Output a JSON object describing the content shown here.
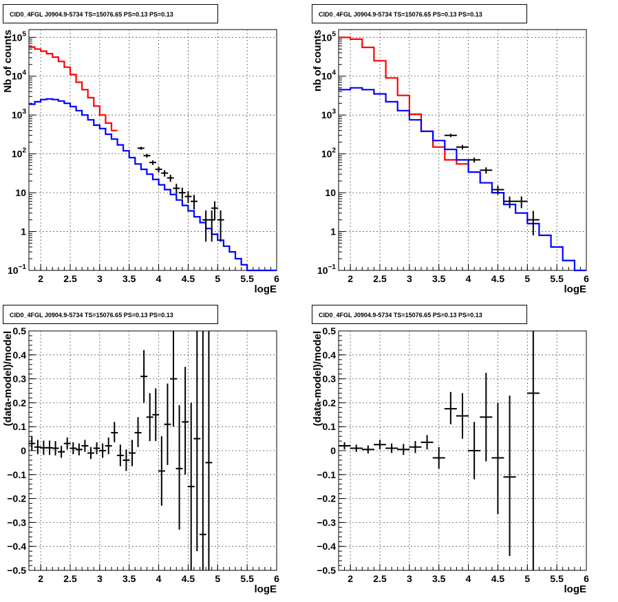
{
  "title": "CID0_4FGL J0904.9-5734 TS=15076.65 PS=0.13 PS=0.13",
  "chart_data": [
    {
      "type": "line",
      "title": "CID0_4FGL J0904.9-5734 TS=15076.65 PS=0.13 PS=0.13",
      "xlabel": "logE",
      "ylabel": "Nb of counts",
      "xlim": [
        1.8,
        6
      ],
      "ylim": [
        0.1,
        200000
      ],
      "log_y": true,
      "x_ticks": [
        "2",
        "2.5",
        "3",
        "3.5",
        "4",
        "4.5",
        "5",
        "5.5",
        "6"
      ],
      "y_ticks": [
        "10^-1",
        "1",
        "10",
        "10^2",
        "10^3",
        "10^4",
        "10^5"
      ],
      "grid": true,
      "series": [
        {
          "color": "#ff0000",
          "edges": [
            1.8,
            1.9,
            2.0,
            2.1,
            2.2,
            2.3,
            2.4,
            2.5,
            2.6,
            2.7,
            2.8,
            2.9,
            3.0,
            3.1,
            3.2,
            3.3
          ],
          "values": [
            56000,
            50000,
            44000,
            38000,
            31000,
            24000,
            17000,
            11000,
            7000,
            4500,
            2800,
            1700,
            1000,
            620,
            400
          ]
        },
        {
          "color": "#0000ff",
          "edges": [
            1.8,
            1.9,
            2.0,
            2.1,
            2.2,
            2.3,
            2.4,
            2.5,
            2.6,
            2.7,
            2.8,
            2.9,
            3.0,
            3.1,
            3.2,
            3.3,
            3.4,
            3.5,
            3.6,
            3.7,
            3.8,
            3.9,
            4.0,
            4.1,
            4.2,
            4.3,
            4.4,
            4.5,
            4.6,
            4.7,
            4.8,
            4.9,
            5.0,
            5.1,
            5.2,
            5.3,
            5.4,
            5.5,
            5.6,
            5.7,
            5.8,
            5.9,
            6.0
          ],
          "values": [
            1900,
            2200,
            2500,
            2600,
            2500,
            2300,
            2000,
            1650,
            1300,
            1000,
            750,
            550,
            450,
            320,
            240,
            170,
            120,
            80,
            55,
            40,
            30,
            22,
            16,
            12,
            9,
            6.5,
            4.7,
            3.4,
            2.4,
            1.7,
            1.2,
            0.85,
            0.6,
            0.42,
            0.3,
            0.2,
            0.14,
            0.1,
            0.08,
            0.07,
            0.06,
            0.06
          ]
        }
      ],
      "points": [
        {
          "x": 3.7,
          "y": 140,
          "lo": 128,
          "hi": 152
        },
        {
          "x": 3.8,
          "y": 90,
          "lo": 80,
          "hi": 100
        },
        {
          "x": 3.9,
          "y": 60,
          "lo": 52,
          "hi": 68
        },
        {
          "x": 4.0,
          "y": 40,
          "lo": 33,
          "hi": 47
        },
        {
          "x": 4.1,
          "y": 32,
          "lo": 26,
          "hi": 38
        },
        {
          "x": 4.2,
          "y": 24,
          "lo": 19,
          "hi": 29
        },
        {
          "x": 4.3,
          "y": 13,
          "lo": 9.5,
          "hi": 17
        },
        {
          "x": 4.4,
          "y": 10,
          "lo": 7,
          "hi": 13.5
        },
        {
          "x": 4.5,
          "y": 8,
          "lo": 5.4,
          "hi": 11
        },
        {
          "x": 4.6,
          "y": 6,
          "lo": 3.7,
          "hi": 8.8
        },
        {
          "x": 4.8,
          "y": 2,
          "lo": 0.55,
          "hi": 3.5
        },
        {
          "x": 4.9,
          "y": 2,
          "lo": 0.55,
          "hi": 3.5
        },
        {
          "x": 4.95,
          "y": 4,
          "lo": 2,
          "hi": 6
        },
        {
          "x": 5.05,
          "y": 2,
          "lo": 0.55,
          "hi": 3.5
        }
      ]
    },
    {
      "type": "line",
      "title": "CID0_4FGL J0904.9-5734 TS=15076.65 PS=0.13 PS=0.13",
      "xlabel": "logE",
      "ylabel": "nb of counts",
      "xlim": [
        1.8,
        6
      ],
      "ylim": [
        0.1,
        200000
      ],
      "log_y": true,
      "x_ticks": [
        "2",
        "2.5",
        "3",
        "3.5",
        "4",
        "4.5",
        "5",
        "5.5",
        "6"
      ],
      "y_ticks": [
        "10^-1",
        "1",
        "10",
        "10^2",
        "10^3",
        "10^4",
        "10^5"
      ],
      "grid": true,
      "series": [
        {
          "color": "#ff0000",
          "edges": [
            1.8,
            2.0,
            2.2,
            2.4,
            2.6,
            2.8,
            3.0,
            3.2,
            3.4,
            3.6,
            3.8,
            4.0
          ],
          "values": [
            100000,
            90000,
            55000,
            25000,
            9000,
            3200,
            1050,
            380,
            150,
            70,
            55
          ]
        },
        {
          "color": "#0000ff",
          "edges": [
            1.8,
            2.0,
            2.2,
            2.4,
            2.6,
            2.8,
            3.0,
            3.2,
            3.4,
            3.6,
            3.8,
            4.0,
            4.2,
            4.4,
            4.6,
            4.8,
            5.0,
            5.2,
            5.4,
            5.6,
            5.8,
            6.0
          ],
          "values": [
            4500,
            5000,
            4500,
            3500,
            2200,
            1300,
            750,
            380,
            220,
            130,
            70,
            34,
            18,
            10,
            5,
            3,
            1.6,
            0.8,
            0.4,
            0.18,
            0.1
          ]
        }
      ],
      "points": [
        {
          "x": 3.7,
          "y": 300,
          "lo": 270,
          "hi": 330
        },
        {
          "x": 3.9,
          "y": 150,
          "lo": 130,
          "hi": 170
        },
        {
          "x": 4.1,
          "y": 70,
          "lo": 60,
          "hi": 80
        },
        {
          "x": 4.3,
          "y": 38,
          "lo": 31,
          "hi": 45
        },
        {
          "x": 4.5,
          "y": 12,
          "lo": 9,
          "hi": 15
        },
        {
          "x": 4.7,
          "y": 6,
          "lo": 4,
          "hi": 8
        },
        {
          "x": 4.9,
          "y": 6,
          "lo": 4,
          "hi": 8
        },
        {
          "x": 5.1,
          "y": 2,
          "lo": 0.8,
          "hi": 3.4
        }
      ]
    },
    {
      "type": "scatter",
      "title": "CID0_4FGL J0904.9-5734 TS=15076.65 PS=0.13 PS=0.13",
      "xlabel": "logE",
      "ylabel": "(data-model)/model",
      "xlim": [
        1.8,
        6
      ],
      "ylim": [
        -0.5,
        0.5
      ],
      "x_ticks": [
        "2",
        "2.5",
        "3",
        "3.5",
        "4",
        "4.5",
        "5",
        "5.5",
        "6"
      ],
      "y_ticks": [
        "-0.5",
        "-0.4",
        "-0.3",
        "-0.2",
        "-0.1",
        "0",
        "0.1",
        "0.2",
        "0.3",
        "0.4",
        "0.5"
      ],
      "grid": true,
      "points": [
        {
          "x": 1.85,
          "y": 0.03,
          "lo": 0.0,
          "hi": 0.06
        },
        {
          "x": 1.95,
          "y": 0.015,
          "lo": -0.015,
          "hi": 0.045
        },
        {
          "x": 2.05,
          "y": 0.012,
          "lo": -0.018,
          "hi": 0.042
        },
        {
          "x": 2.15,
          "y": 0.012,
          "lo": -0.018,
          "hi": 0.042
        },
        {
          "x": 2.25,
          "y": 0.01,
          "lo": -0.02,
          "hi": 0.04
        },
        {
          "x": 2.35,
          "y": -0.005,
          "lo": -0.03,
          "hi": 0.02
        },
        {
          "x": 2.45,
          "y": 0.03,
          "lo": 0.005,
          "hi": 0.055
        },
        {
          "x": 2.55,
          "y": 0.01,
          "lo": -0.015,
          "hi": 0.035
        },
        {
          "x": 2.65,
          "y": 0.005,
          "lo": -0.02,
          "hi": 0.03
        },
        {
          "x": 2.75,
          "y": 0.02,
          "lo": -0.005,
          "hi": 0.045
        },
        {
          "x": 2.85,
          "y": -0.01,
          "lo": -0.035,
          "hi": 0.015
        },
        {
          "x": 2.95,
          "y": 0.01,
          "lo": -0.015,
          "hi": 0.035
        },
        {
          "x": 3.05,
          "y": 0.0,
          "lo": -0.03,
          "hi": 0.03
        },
        {
          "x": 3.15,
          "y": 0.02,
          "lo": -0.015,
          "hi": 0.055
        },
        {
          "x": 3.25,
          "y": 0.075,
          "lo": 0.035,
          "hi": 0.12
        },
        {
          "x": 3.35,
          "y": -0.02,
          "lo": -0.065,
          "hi": 0.025
        },
        {
          "x": 3.45,
          "y": -0.04,
          "lo": -0.085,
          "hi": 0.005
        },
        {
          "x": 3.55,
          "y": -0.01,
          "lo": -0.065,
          "hi": 0.045
        },
        {
          "x": 3.65,
          "y": 0.075,
          "lo": 0.015,
          "hi": 0.14
        },
        {
          "x": 3.75,
          "y": 0.31,
          "lo": 0.2,
          "hi": 0.42
        },
        {
          "x": 3.85,
          "y": 0.14,
          "lo": 0.04,
          "hi": 0.24
        },
        {
          "x": 3.95,
          "y": 0.15,
          "lo": 0.04,
          "hi": 0.26
        },
        {
          "x": 4.05,
          "y": -0.085,
          "lo": -0.23,
          "hi": 0.06
        },
        {
          "x": 4.15,
          "y": 0.11,
          "lo": -0.06,
          "hi": 0.28
        },
        {
          "x": 4.25,
          "y": 0.3,
          "lo": 0.1,
          "hi": 0.5
        },
        {
          "x": 4.35,
          "y": -0.075,
          "lo": -0.33,
          "hi": 0.19
        },
        {
          "x": 4.45,
          "y": 0.12,
          "lo": -0.1,
          "hi": 0.35
        },
        {
          "x": 4.55,
          "y": -0.15,
          "lo": -0.5,
          "hi": 0.2
        },
        {
          "x": 4.65,
          "y": 0.05,
          "lo": -0.42,
          "hi": 0.5
        },
        {
          "x": 4.75,
          "y": -0.35,
          "lo": -0.5,
          "hi": 0.5
        },
        {
          "x": 4.85,
          "y": -0.05,
          "lo": -0.5,
          "hi": 0.5
        }
      ]
    },
    {
      "type": "scatter",
      "title": "CID0_4FGL J0904.9-5734 TS=15076.65 PS=0.13 PS=0.13",
      "xlabel": "logE",
      "ylabel": "(data-model)/model",
      "xlim": [
        1.8,
        6
      ],
      "ylim": [
        -0.5,
        0.5
      ],
      "x_ticks": [
        "2",
        "2.5",
        "3",
        "3.5",
        "4",
        "4.5",
        "5",
        "5.5",
        "6"
      ],
      "y_ticks": [
        "-0.5",
        "-0.4",
        "-0.3",
        "-0.2",
        "-0.1",
        "0",
        "0.1",
        "0.2",
        "0.3",
        "0.4",
        "0.5"
      ],
      "grid": true,
      "points": [
        {
          "x": 1.9,
          "y": 0.02,
          "lo": 0.005,
          "hi": 0.035
        },
        {
          "x": 2.1,
          "y": 0.01,
          "lo": -0.005,
          "hi": 0.025
        },
        {
          "x": 2.3,
          "y": 0.005,
          "lo": -0.012,
          "hi": 0.022
        },
        {
          "x": 2.5,
          "y": 0.025,
          "lo": 0.005,
          "hi": 0.045
        },
        {
          "x": 2.7,
          "y": 0.01,
          "lo": -0.01,
          "hi": 0.03
        },
        {
          "x": 2.9,
          "y": 0.005,
          "lo": -0.018,
          "hi": 0.028
        },
        {
          "x": 3.1,
          "y": 0.015,
          "lo": -0.01,
          "hi": 0.04
        },
        {
          "x": 3.3,
          "y": 0.035,
          "lo": 0.005,
          "hi": 0.065
        },
        {
          "x": 3.5,
          "y": -0.03,
          "lo": -0.075,
          "hi": 0.015
        },
        {
          "x": 3.7,
          "y": 0.175,
          "lo": 0.11,
          "hi": 0.245
        },
        {
          "x": 3.9,
          "y": 0.145,
          "lo": 0.05,
          "hi": 0.24
        },
        {
          "x": 4.1,
          "y": 0.0,
          "lo": -0.12,
          "hi": 0.12
        },
        {
          "x": 4.3,
          "y": 0.14,
          "lo": -0.045,
          "hi": 0.325
        },
        {
          "x": 4.5,
          "y": -0.03,
          "lo": -0.265,
          "hi": 0.2
        },
        {
          "x": 4.7,
          "y": -0.11,
          "lo": -0.44,
          "hi": 0.23
        },
        {
          "x": 5.1,
          "y": 0.24,
          "lo": -0.5,
          "hi": 0.5
        }
      ]
    }
  ]
}
